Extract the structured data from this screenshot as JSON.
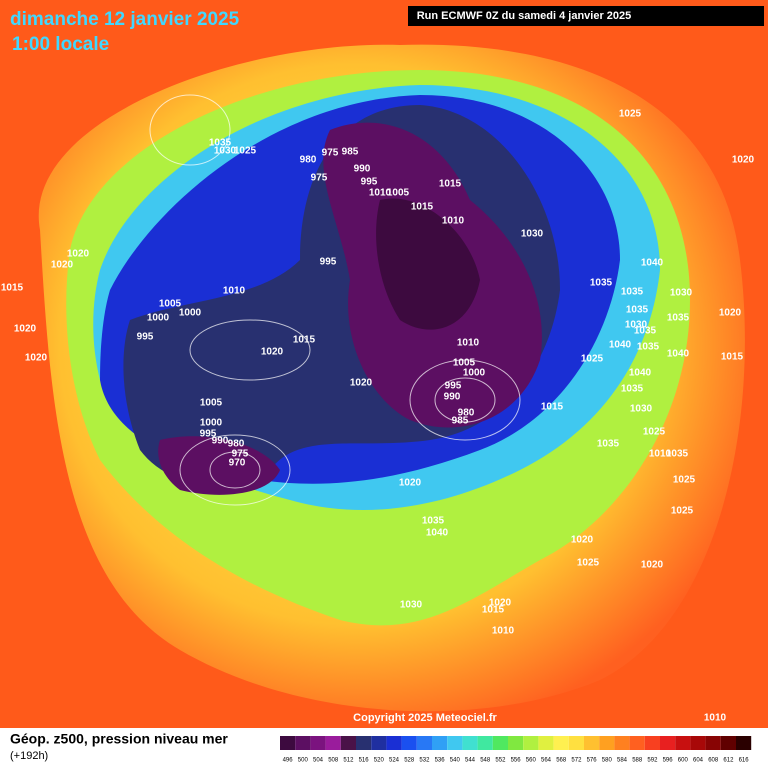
{
  "header": {
    "title": "dimanche 12 janvier 2025",
    "subtitle": "1:00 locale",
    "run": "Run ECMWF 0Z du samedi 4 janvier 2025"
  },
  "copyright": "Copyright 2025 Meteociel.fr",
  "footer": {
    "title": "Géop. z500, pression niveau mer",
    "lead": "(+192h)"
  },
  "legend": {
    "labels": [
      496,
      500,
      504,
      508,
      512,
      516,
      520,
      524,
      528,
      532,
      536,
      540,
      544,
      548,
      552,
      556,
      560,
      564,
      568,
      572,
      576,
      580,
      584,
      588,
      592,
      596,
      600,
      604,
      608,
      612,
      616
    ],
    "colors": [
      "#3d0a3f",
      "#5c0f62",
      "#7b137f",
      "#9a1c9c",
      "#4a1248",
      "#283070",
      "#1f2fa0",
      "#1a2fd4",
      "#1a50f0",
      "#2878f5",
      "#30a0f5",
      "#40c8f0",
      "#40e0d0",
      "#40e8a0",
      "#50e860",
      "#80e840",
      "#b0f040",
      "#e0f040",
      "#fff050",
      "#ffe040",
      "#ffc030",
      "#ffa020",
      "#ff8020",
      "#ff6020",
      "#f84020",
      "#e82020",
      "#c81010",
      "#a80808",
      "#880404",
      "#600000",
      "#2a0000"
    ]
  },
  "pressure_labels": [
    1035,
    1030,
    1025,
    1020,
    1025,
    980,
    975,
    985,
    975,
    990,
    995,
    1010,
    1005,
    1015,
    1015,
    1010,
    1030,
    995,
    1020,
    1020,
    1015,
    1010,
    1005,
    1000,
    1000,
    995,
    1020,
    1020,
    1020,
    1015,
    1040,
    1035,
    1035,
    1030,
    1035,
    1035,
    1030,
    1035,
    1040,
    1035,
    1040,
    1020,
    1015,
    1025,
    1010,
    1005,
    1000,
    995,
    990,
    980,
    985,
    1020,
    1040,
    1035,
    1030,
    1015,
    1005,
    1000,
    995,
    990,
    980,
    975,
    970,
    1035,
    1025,
    1010,
    1035,
    1020,
    1025,
    1025,
    1035,
    1040,
    1020,
    1025,
    1020,
    1030,
    1020,
    1015,
    1010,
    1010
  ]
}
